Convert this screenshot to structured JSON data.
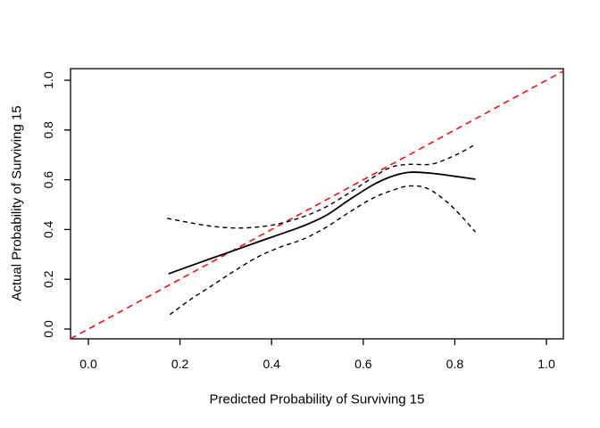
{
  "window": {
    "background_color": "#ffffff"
  },
  "chart_data": {
    "type": "line",
    "title": "",
    "xlabel": "Predicted Probability of Surviving 15",
    "ylabel": "Actual Probability of Surviving 15",
    "xlim": [
      -0.04,
      1.04
    ],
    "ylim": [
      -0.04,
      1.04
    ],
    "grid": false,
    "legend": "none",
    "axis_color": "#000000",
    "x_ticks": {
      "values": [
        0.0,
        0.2,
        0.4,
        0.6,
        0.8,
        1.0
      ],
      "labels": [
        "0.0",
        "0.2",
        "0.4",
        "0.6",
        "0.8",
        "1.0"
      ]
    },
    "y_ticks": {
      "values": [
        0.0,
        0.2,
        0.4,
        0.6,
        0.8,
        1.0
      ],
      "labels": [
        "0.0",
        "0.2",
        "0.4",
        "0.6",
        "0.8",
        "1.0"
      ]
    },
    "series": [
      {
        "name": "ideal-diagonal",
        "description": "reference line y = x",
        "color": "#ff0000",
        "dash": "7,5",
        "width": 1.5,
        "smooth": false,
        "x": [
          -0.039,
          1.037
        ],
        "y": [
          -0.039,
          1.037
        ]
      },
      {
        "name": "calibration-curve",
        "description": "solid calibration estimate",
        "color": "#000000",
        "dash": "none",
        "width": 1.8,
        "smooth": true,
        "x": [
          0.175,
          0.22,
          0.27,
          0.32,
          0.37,
          0.42,
          0.47,
          0.52,
          0.57,
          0.62,
          0.66,
          0.7,
          0.75,
          0.8,
          0.845
        ],
        "y": [
          0.222,
          0.252,
          0.285,
          0.317,
          0.35,
          0.382,
          0.415,
          0.458,
          0.52,
          0.578,
          0.612,
          0.63,
          0.626,
          0.614,
          0.602
        ]
      },
      {
        "name": "upper-band",
        "description": "upper dashed confidence band",
        "color": "#000000",
        "dash": "5,4",
        "width": 1.4,
        "smooth": true,
        "x": [
          0.172,
          0.22,
          0.27,
          0.32,
          0.37,
          0.42,
          0.47,
          0.52,
          0.57,
          0.62,
          0.66,
          0.7,
          0.75,
          0.8,
          0.845
        ],
        "y": [
          0.445,
          0.428,
          0.413,
          0.406,
          0.41,
          0.425,
          0.452,
          0.492,
          0.548,
          0.608,
          0.65,
          0.662,
          0.663,
          0.698,
          0.742
        ]
      },
      {
        "name": "lower-band",
        "description": "lower dashed confidence band",
        "color": "#000000",
        "dash": "5,4",
        "width": 1.4,
        "smooth": true,
        "x": [
          0.178,
          0.22,
          0.27,
          0.32,
          0.37,
          0.42,
          0.47,
          0.52,
          0.57,
          0.62,
          0.66,
          0.7,
          0.74,
          0.78,
          0.81,
          0.845
        ],
        "y": [
          0.058,
          0.115,
          0.175,
          0.235,
          0.29,
          0.33,
          0.362,
          0.41,
          0.47,
          0.525,
          0.555,
          0.575,
          0.565,
          0.515,
          0.462,
          0.39
        ]
      }
    ]
  }
}
